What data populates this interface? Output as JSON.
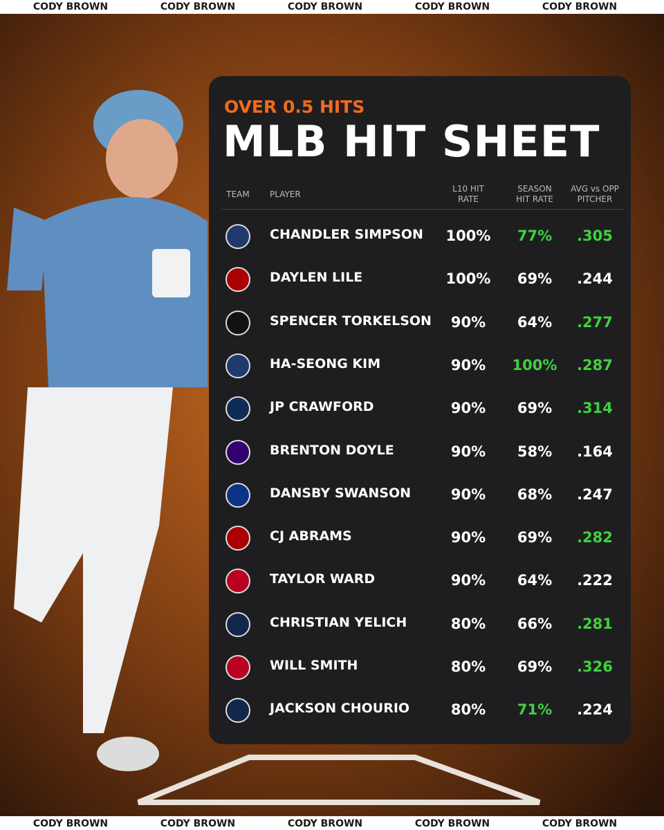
{
  "watermark": "CODY BROWN",
  "header": {
    "subtitle": "OVER 0.5 HITS",
    "title": "MLB HIT SHEET"
  },
  "table": {
    "columns": {
      "team": "TEAM",
      "player": "PLAYER",
      "l10": "L10 HIT RATE",
      "season": "SEASON HIT RATE",
      "avg": "AVG vs OPP PITCHER"
    },
    "highlight_color": "#3fd23c",
    "rows": [
      {
        "player": "CHANDLER SIMPSON",
        "l10": "100%",
        "season": "77%",
        "avg": ".305",
        "highlight": [
          "season",
          "avg"
        ]
      },
      {
        "player": "DAYLEN LILE",
        "l10": "100%",
        "season": "69%",
        "avg": ".244",
        "highlight": []
      },
      {
        "player": "SPENCER TORKELSON",
        "l10": "90%",
        "season": "64%",
        "avg": ".277",
        "highlight": [
          "avg"
        ]
      },
      {
        "player": "HA-SEONG KIM",
        "l10": "90%",
        "season": "100%",
        "avg": ".287",
        "highlight": [
          "season",
          "avg"
        ]
      },
      {
        "player": "JP CRAWFORD",
        "l10": "90%",
        "season": "69%",
        "avg": ".314",
        "highlight": [
          "avg"
        ]
      },
      {
        "player": "BRENTON DOYLE",
        "l10": "90%",
        "season": "58%",
        "avg": ".164",
        "highlight": []
      },
      {
        "player": "DANSBY SWANSON",
        "l10": "90%",
        "season": "68%",
        "avg": ".247",
        "highlight": []
      },
      {
        "player": "CJ ABRAMS",
        "l10": "90%",
        "season": "69%",
        "avg": ".282",
        "highlight": [
          "avg"
        ]
      },
      {
        "player": "TAYLOR WARD",
        "l10": "90%",
        "season": "64%",
        "avg": ".222",
        "highlight": []
      },
      {
        "player": "CHRISTIAN YELICH",
        "l10": "80%",
        "season": "66%",
        "avg": ".281",
        "highlight": [
          "avg"
        ]
      },
      {
        "player": "WILL SMITH",
        "l10": "80%",
        "season": "69%",
        "avg": ".326",
        "highlight": [
          "avg"
        ]
      },
      {
        "player": "JACKSON CHOURIO",
        "l10": "80%",
        "season": "71%",
        "avg": ".224",
        "highlight": [
          "season"
        ]
      }
    ]
  }
}
